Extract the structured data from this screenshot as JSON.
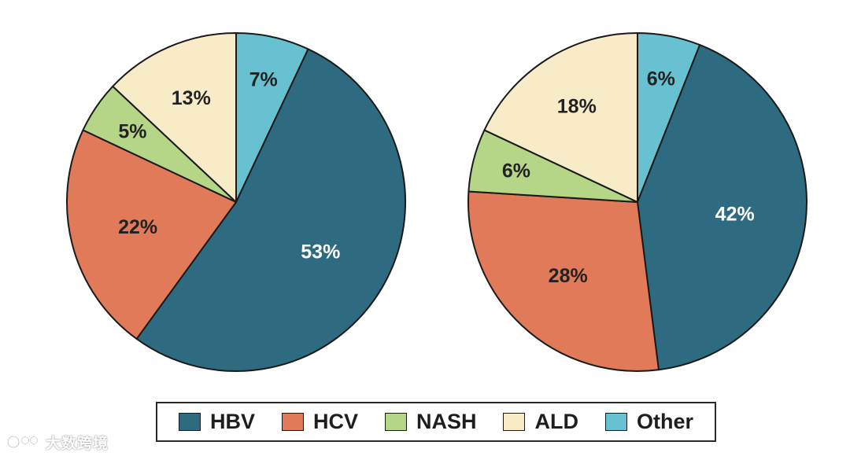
{
  "colors": {
    "HBV": "#2e6b80",
    "HCV": "#e07a58",
    "NASH": "#b5d686",
    "ALD": "#f8ecc8",
    "Other": "#68c1d0"
  },
  "chart_data": [
    {
      "type": "pie",
      "name": "left",
      "title": "",
      "slices": [
        {
          "label": "Other",
          "value": 7,
          "text": "7%"
        },
        {
          "label": "HBV",
          "value": 53,
          "text": "53%"
        },
        {
          "label": "HCV",
          "value": 22,
          "text": "22%"
        },
        {
          "label": "NASH",
          "value": 5,
          "text": "5%"
        },
        {
          "label": "ALD",
          "value": 13,
          "text": "13%"
        }
      ]
    },
    {
      "type": "pie",
      "name": "right",
      "title": "",
      "slices": [
        {
          "label": "Other",
          "value": 6,
          "text": "6%"
        },
        {
          "label": "HBV",
          "value": 42,
          "text": "42%"
        },
        {
          "label": "HCV",
          "value": 28,
          "text": "28%"
        },
        {
          "label": "NASH",
          "value": 6,
          "text": "6%"
        },
        {
          "label": "ALD",
          "value": 18,
          "text": "18%"
        }
      ]
    }
  ],
  "legend": {
    "items": [
      {
        "key": "HBV",
        "label": "HBV"
      },
      {
        "key": "HCV",
        "label": "HCV"
      },
      {
        "key": "NASH",
        "label": "NASH"
      },
      {
        "key": "ALD",
        "label": "ALD"
      },
      {
        "key": "Other",
        "label": "Other"
      }
    ]
  },
  "watermark": {
    "text": "大数跨境"
  }
}
